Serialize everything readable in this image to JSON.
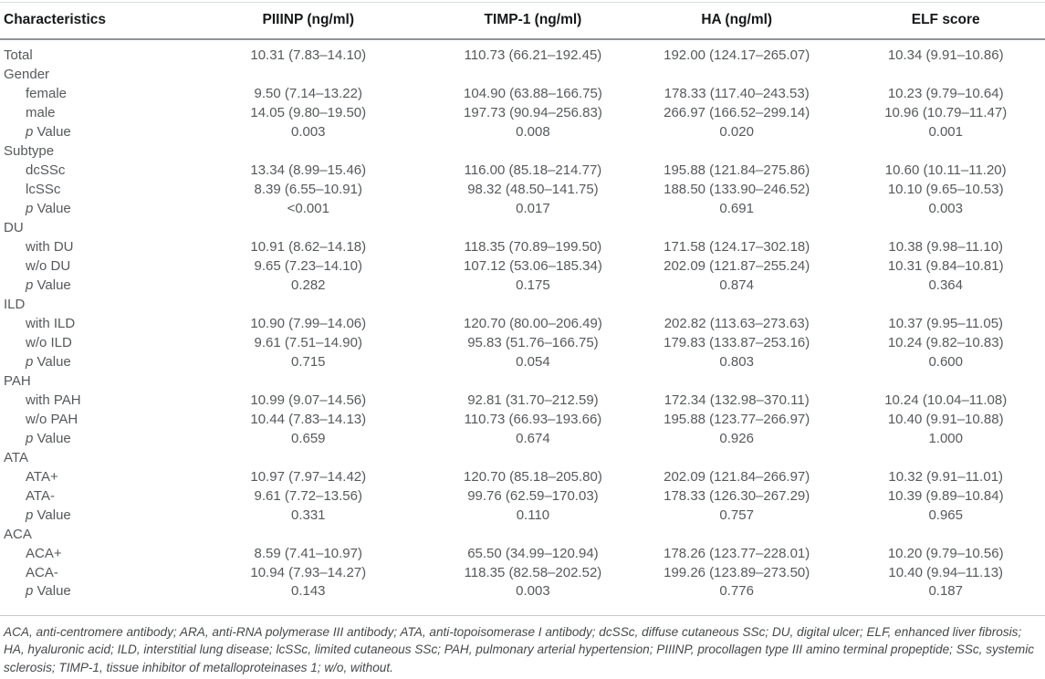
{
  "table": {
    "columns": [
      "Characteristics",
      "PIIINP (ng/ml)",
      "TIMP-1 (ng/ml)",
      "HA (ng/ml)",
      "ELF score"
    ],
    "rows": [
      {
        "label": "Total",
        "indent": false,
        "p": false,
        "cells": [
          "10.31 (7.83–14.10)",
          "110.73 (66.21–192.45)",
          "192.00 (124.17–265.07)",
          "10.34 (9.91–10.86)"
        ]
      },
      {
        "label": "Gender",
        "indent": false,
        "p": false,
        "cells": [
          "",
          "",
          "",
          ""
        ]
      },
      {
        "label": "female",
        "indent": true,
        "p": false,
        "cells": [
          "9.50 (7.14–13.22)",
          "104.90 (63.88–166.75)",
          "178.33 (117.40–243.53)",
          "10.23 (9.79–10.64)"
        ]
      },
      {
        "label": "male",
        "indent": true,
        "p": false,
        "cells": [
          "14.05 (9.80–19.50)",
          "197.73 (90.94–256.83)",
          "266.97 (166.52–299.14)",
          "10.96 (10.79–11.47)"
        ]
      },
      {
        "label": "p Value",
        "indent": true,
        "p": true,
        "cells": [
          "0.003",
          "0.008",
          "0.020",
          "0.001"
        ]
      },
      {
        "label": "Subtype",
        "indent": false,
        "p": false,
        "cells": [
          "",
          "",
          "",
          ""
        ]
      },
      {
        "label": "dcSSc",
        "indent": true,
        "p": false,
        "cells": [
          "13.34 (8.99–15.46)",
          "116.00 (85.18–214.77)",
          "195.88 (121.84–275.86)",
          "10.60 (10.11–11.20)"
        ]
      },
      {
        "label": "lcSSc",
        "indent": true,
        "p": false,
        "cells": [
          "8.39 (6.55–10.91)",
          "98.32 (48.50–141.75)",
          "188.50 (133.90–246.52)",
          "10.10 (9.65–10.53)"
        ]
      },
      {
        "label": "p Value",
        "indent": true,
        "p": true,
        "cells": [
          "<0.001",
          "0.017",
          "0.691",
          "0.003"
        ]
      },
      {
        "label": "DU",
        "indent": false,
        "p": false,
        "cells": [
          "",
          "",
          "",
          ""
        ]
      },
      {
        "label": "with DU",
        "indent": true,
        "p": false,
        "cells": [
          "10.91 (8.62–14.18)",
          "118.35 (70.89–199.50)",
          "171.58 (124.17–302.18)",
          "10.38 (9.98–11.10)"
        ]
      },
      {
        "label": "w/o DU",
        "indent": true,
        "p": false,
        "cells": [
          "9.65 (7.23–14.10)",
          "107.12 (53.06–185.34)",
          "202.09 (121.87–255.24)",
          "10.31 (9.84–10.81)"
        ]
      },
      {
        "label": "p Value",
        "indent": true,
        "p": true,
        "cells": [
          "0.282",
          "0.175",
          "0.874",
          "0.364"
        ]
      },
      {
        "label": "ILD",
        "indent": false,
        "p": false,
        "cells": [
          "",
          "",
          "",
          ""
        ]
      },
      {
        "label": "with ILD",
        "indent": true,
        "p": false,
        "cells": [
          "10.90 (7.99–14.06)",
          "120.70 (80.00–206.49)",
          "202.82 (113.63–273.63)",
          "10.37 (9.95–11.05)"
        ]
      },
      {
        "label": "w/o ILD",
        "indent": true,
        "p": false,
        "cells": [
          "9.61 (7.51–14.90)",
          "95.83 (51.76–166.75)",
          "179.83 (133.87–253.16)",
          "10.24 (9.82–10.83)"
        ]
      },
      {
        "label": "p Value",
        "indent": true,
        "p": true,
        "cells": [
          "0.715",
          "0.054",
          "0.803",
          "0.600"
        ]
      },
      {
        "label": "PAH",
        "indent": false,
        "p": false,
        "cells": [
          "",
          "",
          "",
          ""
        ]
      },
      {
        "label": "with PAH",
        "indent": true,
        "p": false,
        "cells": [
          "10.99 (9.07–14.56)",
          "92.81 (31.70–212.59)",
          "172.34 (132.98–370.11)",
          "10.24 (10.04–11.08)"
        ]
      },
      {
        "label": "w/o PAH",
        "indent": true,
        "p": false,
        "cells": [
          "10.44 (7.83–14.13)",
          "110.73 (66.93–193.66)",
          "195.88 (123.77–266.97)",
          "10.40 (9.91–10.88)"
        ]
      },
      {
        "label": "p Value",
        "indent": true,
        "p": true,
        "cells": [
          "0.659",
          "0.674",
          "0.926",
          "1.000"
        ]
      },
      {
        "label": "ATA",
        "indent": false,
        "p": false,
        "cells": [
          "",
          "",
          "",
          ""
        ]
      },
      {
        "label": "ATA+",
        "indent": true,
        "p": false,
        "cells": [
          "10.97 (7.97–14.42)",
          "120.70 (85.18–205.80)",
          "202.09 (121.84–266.97)",
          "10.32 (9.91–11.01)"
        ]
      },
      {
        "label": "ATA-",
        "indent": true,
        "p": false,
        "cells": [
          "9.61 (7.72–13.56)",
          "99.76 (62.59–170.03)",
          "178.33 (126.30–267.29)",
          "10.39 (9.89–10.84)"
        ]
      },
      {
        "label": "p Value",
        "indent": true,
        "p": true,
        "cells": [
          "0.331",
          "0.110",
          "0.757",
          "0.965"
        ]
      },
      {
        "label": "ACA",
        "indent": false,
        "p": false,
        "cells": [
          "",
          "",
          "",
          ""
        ]
      },
      {
        "label": "ACA+",
        "indent": true,
        "p": false,
        "cells": [
          "8.59 (7.41–10.97)",
          "65.50 (34.99–120.94)",
          "178.26 (123.77–228.01)",
          "10.20 (9.79–10.56)"
        ]
      },
      {
        "label": "ACA-",
        "indent": true,
        "p": false,
        "cells": [
          "10.94 (7.93–14.27)",
          "118.35 (82.58–202.52)",
          "199.26 (123.89–273.50)",
          "10.40 (9.94–11.13)"
        ]
      },
      {
        "label": "p Value",
        "indent": true,
        "p": true,
        "cells": [
          "0.143",
          "0.003",
          "0.776",
          "0.187"
        ]
      }
    ]
  },
  "footnote": "ACA, anti-centromere antibody; ARA, anti-RNA polymerase III antibody; ATA, anti-topoisomerase I antibody; dcSSc, diffuse cutaneous SSc; DU, digital ulcer; ELF, enhanced liver fibrosis; HA, hyaluronic acid; ILD, interstitial lung disease; lcSSc, limited cutaneous SSc; PAH, pulmonary arterial hypertension; PIIINP, procollagen type III amino terminal propeptide; SSc, systemic sclerosis; TIMP-1, tissue inhibitor of metalloproteinases 1; w/o, without."
}
